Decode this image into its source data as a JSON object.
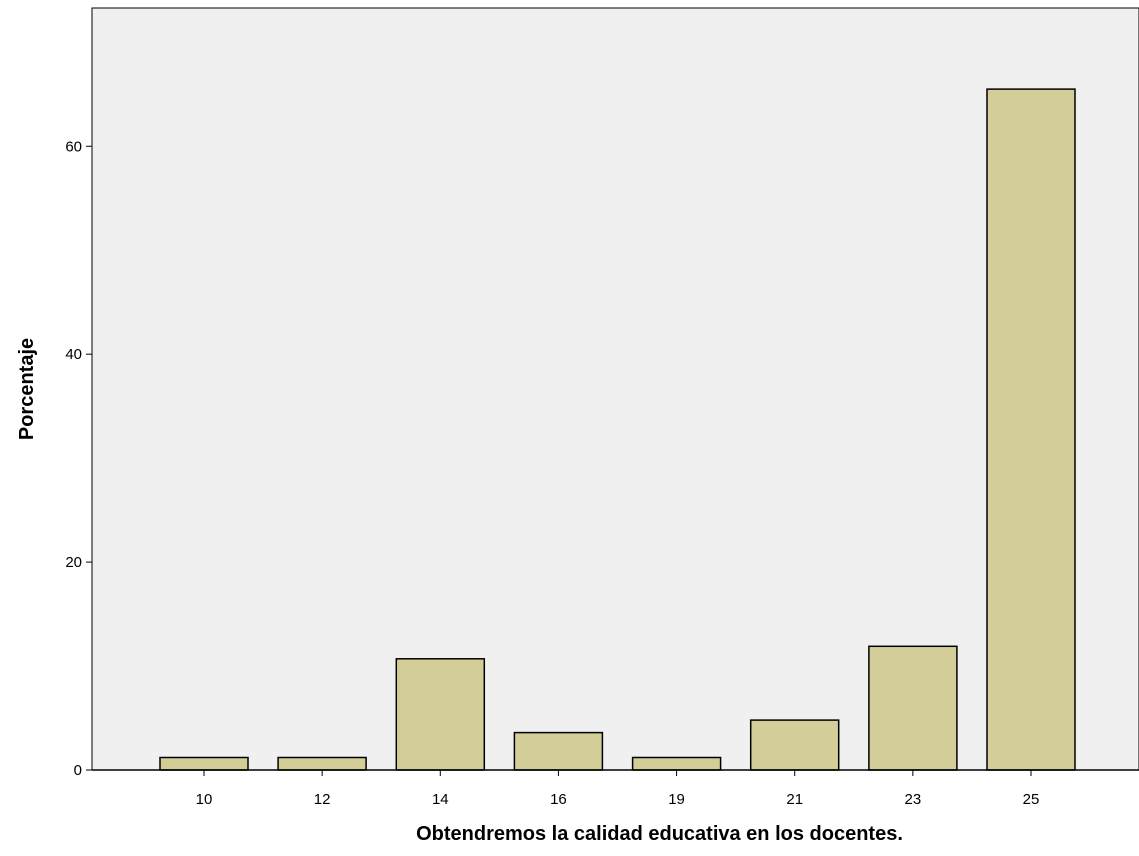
{
  "chart_data": {
    "type": "bar",
    "categories": [
      "10",
      "12",
      "14",
      "16",
      "19",
      "21",
      "23",
      "25"
    ],
    "values": [
      1.2,
      1.2,
      10.7,
      3.6,
      1.2,
      4.8,
      11.9,
      65.5
    ],
    "title": "",
    "xlabel": "Obtendremos la calidad educativa en los docentes.",
    "ylabel": "Porcentaje",
    "ylim": [
      0,
      73.3
    ],
    "yticks": [
      0,
      20,
      40,
      60
    ],
    "grid": false,
    "colors": {
      "plot_background": "#f0f0f0",
      "bar_fill": "#d3ce97",
      "bar_stroke": "#000000",
      "axis": "#000000"
    }
  }
}
